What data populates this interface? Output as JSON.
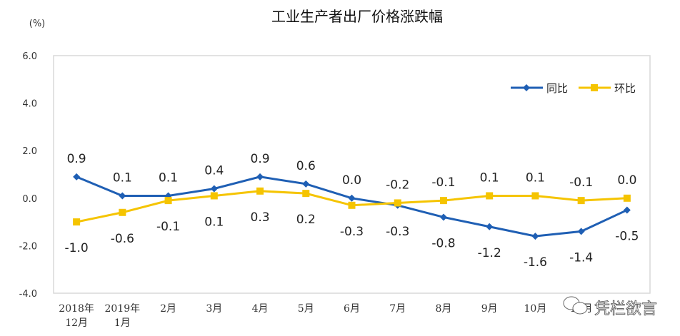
{
  "chart_data": {
    "type": "line",
    "title": "工业生产者出厂价格涨跌幅",
    "ylabel": "(%)",
    "xlabel": "",
    "ylim": [
      -4.0,
      6.0
    ],
    "yticks": [
      "6.0",
      "4.0",
      "2.0",
      "0.0",
      "-2.0",
      "-4.0"
    ],
    "grid": false,
    "legend": "top-right",
    "categories": [
      [
        "2018年",
        "12月"
      ],
      [
        "2019年",
        "1月"
      ],
      [
        "2月"
      ],
      [
        "3月"
      ],
      [
        "4月"
      ],
      [
        "5月"
      ],
      [
        "6月"
      ],
      [
        "7月"
      ],
      [
        "8月"
      ],
      [
        "9月"
      ],
      [
        "10月"
      ],
      [
        "11月"
      ],
      [
        ""
      ]
    ],
    "series": [
      {
        "name": "同比",
        "color": "#1f5fb4",
        "marker": "diamond",
        "values": [
          0.9,
          0.1,
          0.1,
          0.4,
          0.9,
          0.6,
          0.0,
          -0.3,
          -0.8,
          -1.2,
          -1.6,
          -1.4,
          -0.5
        ]
      },
      {
        "name": "环比",
        "color": "#f5c400",
        "marker": "square",
        "values": [
          -1.0,
          -0.6,
          -0.1,
          0.1,
          0.3,
          0.2,
          -0.3,
          -0.2,
          -0.1,
          0.1,
          0.1,
          -0.1,
          0.0
        ]
      }
    ]
  },
  "watermark": "凭栏欲言"
}
